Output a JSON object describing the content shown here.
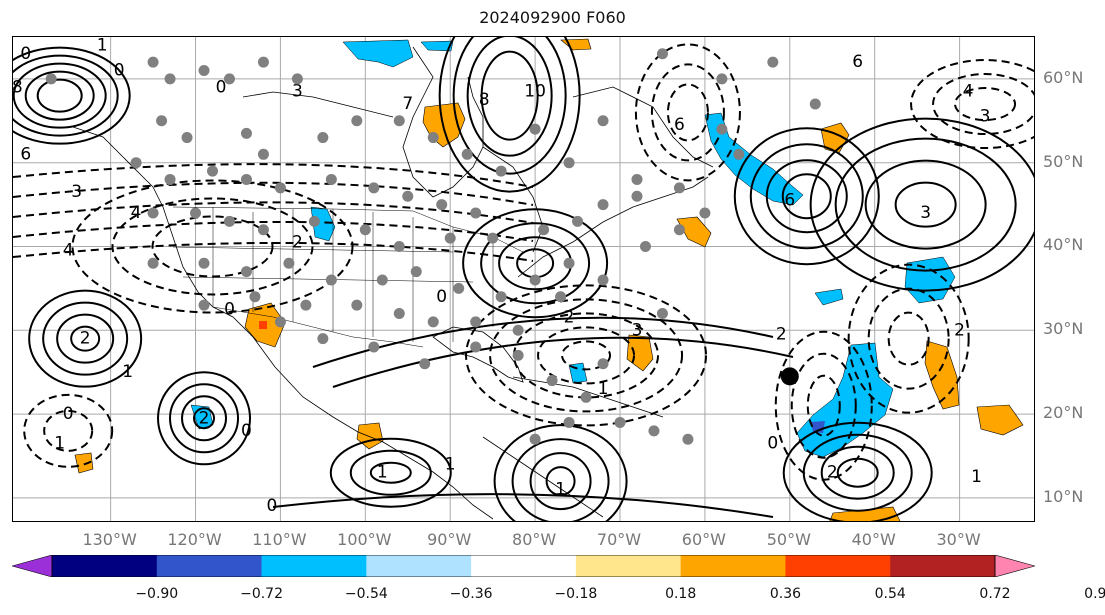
{
  "title": "2024092900 F060",
  "lat_labels": [
    {
      "text": "60°N",
      "lat": 60
    },
    {
      "text": "50°N",
      "lat": 50
    },
    {
      "text": "40°N",
      "lat": 40
    },
    {
      "text": "30°N",
      "lat": 30
    },
    {
      "text": "20°N",
      "lat": 20
    },
    {
      "text": "10°N",
      "lat": 10
    }
  ],
  "lon_labels": [
    {
      "text": "130°W",
      "lon": -130
    },
    {
      "text": "120°W",
      "lon": -120
    },
    {
      "text": "110°W",
      "lon": -110
    },
    {
      "text": "100°W",
      "lon": -100
    },
    {
      "text": "90°W",
      "lon": -90
    },
    {
      "text": "80°W",
      "lon": -80
    },
    {
      "text": "70°W",
      "lon": -70
    },
    {
      "text": "60°W",
      "lon": -60
    },
    {
      "text": "50°W",
      "lon": -50
    },
    {
      "text": "40°W",
      "lon": -40
    },
    {
      "text": "30°W",
      "lon": -30
    }
  ],
  "map_extent": {
    "lon_min": -141.5,
    "lon_max": -21,
    "lat_min": 7,
    "lat_max": 65
  },
  "colorbar": {
    "colors": [
      "#9b30d8",
      "#000080",
      "#3355cc",
      "#00bfff",
      "#aee2ff",
      "#ffffff",
      "#ffe68c",
      "#ffa500",
      "#ff4000",
      "#b22222",
      "#ff85b0"
    ],
    "labels": [
      "−0.90",
      "−0.72",
      "−0.54",
      "−0.36",
      "−0.18",
      "0.18",
      "0.36",
      "0.54",
      "0.72",
      "0.90"
    ]
  },
  "contour_labels": [
    {
      "text": "1",
      "lon": -131,
      "lat": 64
    },
    {
      "text": "0",
      "lon": -140,
      "lat": 63
    },
    {
      "text": "0",
      "lon": -129,
      "lat": 61
    },
    {
      "text": "8",
      "lon": -141,
      "lat": 59
    },
    {
      "text": "6",
      "lon": -140,
      "lat": 51
    },
    {
      "text": "3",
      "lon": -134,
      "lat": 46.5
    },
    {
      "text": "4",
      "lon": -127,
      "lat": 44
    },
    {
      "text": "4",
      "lon": -135,
      "lat": 39.5
    },
    {
      "text": "0",
      "lon": -117,
      "lat": 59
    },
    {
      "text": "3",
      "lon": -108,
      "lat": 58.5
    },
    {
      "text": "7",
      "lon": -95,
      "lat": 57
    },
    {
      "text": "8",
      "lon": -86,
      "lat": 57.5
    },
    {
      "text": "10",
      "lon": -80,
      "lat": 58.5
    },
    {
      "text": "6",
      "lon": -63,
      "lat": 54.5
    },
    {
      "text": "6",
      "lon": -42,
      "lat": 62
    },
    {
      "text": "4",
      "lon": -29,
      "lat": 58.5
    },
    {
      "text": "3",
      "lon": -27,
      "lat": 55.5
    },
    {
      "text": "3",
      "lon": -34,
      "lat": 44
    },
    {
      "text": "6",
      "lon": -50,
      "lat": 45.5
    },
    {
      "text": "2",
      "lon": -108,
      "lat": 40.5
    },
    {
      "text": "0",
      "lon": -116,
      "lat": 32.5
    },
    {
      "text": "0",
      "lon": -91,
      "lat": 34
    },
    {
      "text": "2",
      "lon": -76,
      "lat": 31.5
    },
    {
      "text": "3",
      "lon": -68,
      "lat": 30
    },
    {
      "text": "2",
      "lon": -133,
      "lat": 29
    },
    {
      "text": "1",
      "lon": -128,
      "lat": 25
    },
    {
      "text": "0",
      "lon": -135,
      "lat": 20
    },
    {
      "text": "1",
      "lon": -136,
      "lat": 16.5
    },
    {
      "text": "2",
      "lon": -119,
      "lat": 19.5
    },
    {
      "text": "0",
      "lon": -114,
      "lat": 18
    },
    {
      "text": "1",
      "lon": -98,
      "lat": 13
    },
    {
      "text": "1",
      "lon": -90,
      "lat": 14
    },
    {
      "text": "1",
      "lon": -77,
      "lat": 11
    },
    {
      "text": "0",
      "lon": -111,
      "lat": 9
    },
    {
      "text": "2",
      "lon": -51,
      "lat": 29.5
    },
    {
      "text": "2",
      "lon": -30,
      "lat": 30
    },
    {
      "text": "1",
      "lon": -72,
      "lat": 23
    },
    {
      "text": "0",
      "lon": -52,
      "lat": 16.5
    },
    {
      "text": "2",
      "lon": -45,
      "lat": 13
    },
    {
      "text": "1",
      "lon": -28,
      "lat": 12.5
    }
  ],
  "grey_dots": [
    [
      -137,
      60
    ],
    [
      -125,
      62
    ],
    [
      -123,
      60
    ],
    [
      -119,
      61
    ],
    [
      -116,
      60
    ],
    [
      -112,
      62
    ],
    [
      -108,
      60
    ],
    [
      -124,
      55
    ],
    [
      -114,
      53.5
    ],
    [
      -112,
      51
    ],
    [
      -105,
      53
    ],
    [
      -101,
      55
    ],
    [
      -96,
      55
    ],
    [
      -92,
      53
    ],
    [
      -88,
      51
    ],
    [
      -121,
      53
    ],
    [
      -127,
      50
    ],
    [
      -123,
      48
    ],
    [
      -118,
      49
    ],
    [
      -114,
      48
    ],
    [
      -110,
      47
    ],
    [
      -104,
      48
    ],
    [
      -99,
      47
    ],
    [
      -95,
      46
    ],
    [
      -91,
      45
    ],
    [
      -87,
      44
    ],
    [
      -125,
      44
    ],
    [
      -120,
      44
    ],
    [
      -116,
      43
    ],
    [
      -112,
      42
    ],
    [
      -106,
      43
    ],
    [
      -100,
      42
    ],
    [
      -96,
      40
    ],
    [
      -90,
      41
    ],
    [
      -85,
      41
    ],
    [
      -79,
      42
    ],
    [
      -75,
      43
    ],
    [
      -72,
      45
    ],
    [
      -68,
      46
    ],
    [
      -63,
      47
    ],
    [
      -60,
      44
    ],
    [
      -125,
      38
    ],
    [
      -119,
      38
    ],
    [
      -114,
      37
    ],
    [
      -109,
      38
    ],
    [
      -104,
      36
    ],
    [
      -98,
      36
    ],
    [
      -94,
      37
    ],
    [
      -89,
      35
    ],
    [
      -84,
      34
    ],
    [
      -80,
      36
    ],
    [
      -76,
      38
    ],
    [
      -119,
      33
    ],
    [
      -113,
      34
    ],
    [
      -107,
      33
    ],
    [
      -101,
      33
    ],
    [
      -96,
      32
    ],
    [
      -92,
      31
    ],
    [
      -87,
      31
    ],
    [
      -82,
      30
    ],
    [
      -77,
      34
    ],
    [
      -72,
      36
    ],
    [
      -67,
      40
    ],
    [
      -63,
      42
    ],
    [
      -110,
      31
    ],
    [
      -105,
      29
    ],
    [
      -99,
      28
    ],
    [
      -93,
      26
    ],
    [
      -87,
      28
    ],
    [
      -82,
      27
    ],
    [
      -78,
      24
    ],
    [
      -74,
      22
    ],
    [
      -70,
      19
    ],
    [
      -66,
      18
    ],
    [
      -62,
      17
    ],
    [
      -80,
      17
    ],
    [
      -76,
      19
    ],
    [
      -72,
      26
    ],
    [
      -65,
      32
    ],
    [
      -58,
      54
    ],
    [
      -58,
      60
    ],
    [
      -52,
      62
    ],
    [
      -47,
      57
    ],
    [
      -65,
      63
    ],
    [
      -72,
      55
    ],
    [
      -76,
      50
    ],
    [
      -80,
      54
    ],
    [
      -84,
      49
    ],
    [
      -68,
      48
    ],
    [
      -56,
      51
    ]
  ],
  "marker": {
    "lon": -50,
    "lat": 24.5
  }
}
